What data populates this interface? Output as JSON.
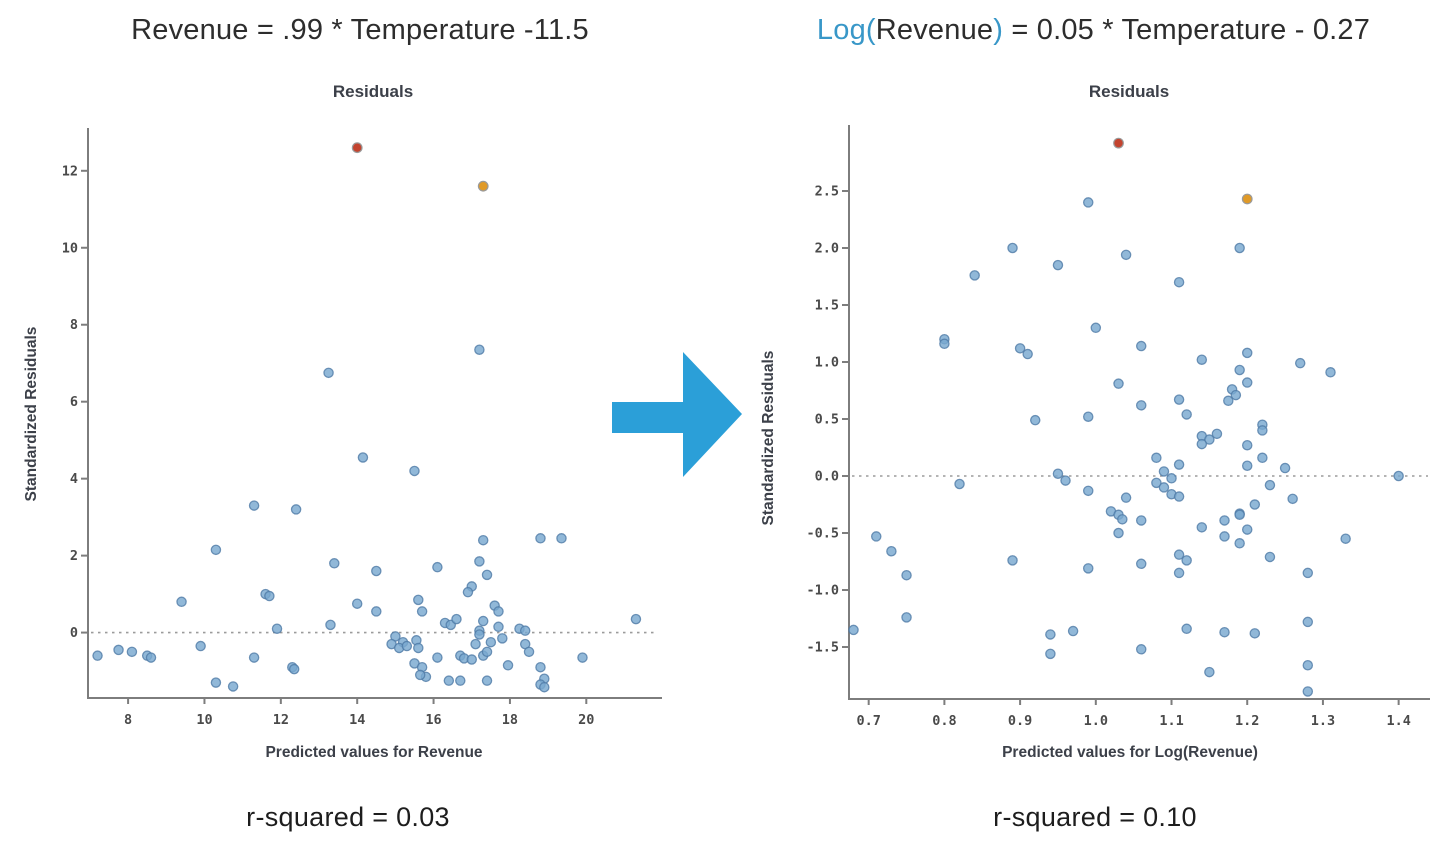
{
  "colors": {
    "background": "#ffffff",
    "dark_text": "#2d2d2d",
    "blue_text": "#3897C8",
    "label_text": "#3c4049",
    "caption_text": "#1d1d1d",
    "tick_text": "#4a4a4a",
    "axis": "#7d7d7d",
    "dotted_line": "#9b9b9b",
    "point_fill": "#79A8D0",
    "point_stroke": "#4F7BA6",
    "outlier_red": "#C3432E",
    "outlier_orange": "#E09A28",
    "outlier_stroke": "#9a9a9a",
    "arrow": "#2B9FD8"
  },
  "arrow": {
    "direction": "right",
    "color": "#2B9FD8"
  },
  "chart_data": [
    {
      "type": "scatter",
      "title_segments": [
        {
          "text": "Revenue = .99 * Temperature -11.5",
          "color_role": "dark"
        }
      ],
      "subtitle": "Residuals",
      "xlabel": "Predicted values for Revenue",
      "ylabel": "Standardized Residuals",
      "caption": "r-squared = 0.03",
      "xlim": [
        6.95,
        21.93
      ],
      "ylim": [
        -1.7,
        13.19
      ],
      "xticks": [
        8,
        10,
        12,
        14,
        16,
        18,
        20
      ],
      "xtick_labels": [
        "8",
        "10",
        "12",
        "14",
        "16",
        "18",
        "20"
      ],
      "yticks": [
        12,
        10,
        8,
        6,
        4,
        2,
        0
      ],
      "ytick_labels": [
        "12",
        "10",
        "8",
        "6",
        "4",
        "2",
        "0"
      ],
      "zero_line": 0,
      "grid": false,
      "points": [
        [
          17.2,
          7.35
        ],
        [
          13.25,
          6.75
        ],
        [
          14.15,
          4.55
        ],
        [
          15.5,
          4.2
        ],
        [
          11.3,
          3.3
        ],
        [
          12.4,
          3.2
        ],
        [
          10.3,
          2.15
        ],
        [
          17.3,
          2.4
        ],
        [
          18.8,
          2.45
        ],
        [
          19.35,
          2.45
        ],
        [
          16.1,
          1.7
        ],
        [
          17.2,
          1.85
        ],
        [
          17.4,
          1.5
        ],
        [
          17.0,
          1.2
        ],
        [
          16.9,
          1.05
        ],
        [
          15.6,
          0.85
        ],
        [
          15.7,
          0.55
        ],
        [
          17.6,
          0.7
        ],
        [
          17.7,
          0.55
        ],
        [
          16.3,
          0.25
        ],
        [
          16.45,
          0.2
        ],
        [
          16.6,
          0.35
        ],
        [
          17.3,
          0.3
        ],
        [
          17.2,
          0.05
        ],
        [
          17.7,
          0.15
        ],
        [
          18.25,
          0.1
        ],
        [
          18.4,
          0.05
        ],
        [
          21.3,
          0.35
        ],
        [
          15.0,
          -0.1
        ],
        [
          15.2,
          -0.25
        ],
        [
          14.9,
          -0.3
        ],
        [
          15.1,
          -0.4
        ],
        [
          15.3,
          -0.35
        ],
        [
          15.55,
          -0.2
        ],
        [
          15.6,
          -0.4
        ],
        [
          17.2,
          -0.05
        ],
        [
          17.1,
          -0.3
        ],
        [
          17.5,
          -0.25
        ],
        [
          17.8,
          -0.15
        ],
        [
          18.4,
          -0.3
        ],
        [
          18.5,
          -0.5
        ],
        [
          16.1,
          -0.65
        ],
        [
          16.7,
          -0.6
        ],
        [
          16.8,
          -0.67
        ],
        [
          17.0,
          -0.7
        ],
        [
          17.3,
          -0.6
        ],
        [
          17.4,
          -0.5
        ],
        [
          17.95,
          -0.85
        ],
        [
          19.9,
          -0.65
        ],
        [
          15.5,
          -0.8
        ],
        [
          15.7,
          -0.9
        ],
        [
          15.8,
          -1.15
        ],
        [
          15.65,
          -1.1
        ],
        [
          16.4,
          -1.25
        ],
        [
          16.7,
          -1.25
        ],
        [
          17.4,
          -1.25
        ],
        [
          18.8,
          -0.9
        ],
        [
          18.9,
          -1.2
        ],
        [
          18.8,
          -1.35
        ],
        [
          18.9,
          -1.42
        ],
        [
          13.4,
          1.8
        ],
        [
          14.5,
          1.6
        ],
        [
          9.4,
          0.8
        ],
        [
          11.6,
          1.0
        ],
        [
          11.7,
          0.95
        ],
        [
          11.9,
          0.1
        ],
        [
          13.3,
          0.2
        ],
        [
          14.0,
          0.75
        ],
        [
          14.5,
          0.55
        ],
        [
          7.2,
          -0.6
        ],
        [
          7.75,
          -0.45
        ],
        [
          8.1,
          -0.5
        ],
        [
          8.5,
          -0.6
        ],
        [
          8.6,
          -0.65
        ],
        [
          9.9,
          -0.35
        ],
        [
          11.3,
          -0.65
        ],
        [
          12.3,
          -0.9
        ],
        [
          12.35,
          -0.95
        ],
        [
          10.3,
          -1.3
        ],
        [
          10.75,
          -1.4
        ]
      ],
      "outliers": [
        {
          "x": 14.0,
          "y": 12.6,
          "color_role": "outlier_red"
        },
        {
          "x": 17.3,
          "y": 11.6,
          "color_role": "outlier_orange"
        }
      ]
    },
    {
      "type": "scatter",
      "title_segments": [
        {
          "text": "Log(",
          "color_role": "blue"
        },
        {
          "text": "Revenue",
          "color_role": "dark"
        },
        {
          "text": ")",
          "color_role": "blue"
        },
        {
          "text": " = 0.05 * Temperature - 0.27",
          "color_role": "dark"
        }
      ],
      "subtitle": "Residuals",
      "xlabel": "Predicted values for Log(Revenue)",
      "ylabel": "Standardized Residuals",
      "caption": "r-squared = 0.10",
      "xlim": [
        0.674,
        1.415
      ],
      "ylim": [
        -1.956,
        3.079
      ],
      "xticks": [
        0.7,
        0.8,
        0.9,
        1.0,
        1.1,
        1.2,
        1.3,
        1.4
      ],
      "xtick_labels": [
        "0.7",
        "0.8",
        "0.9",
        "1.0",
        "1.1",
        "1.2",
        "1.3",
        "1.4"
      ],
      "yticks": [
        2.5,
        2.0,
        1.5,
        1.0,
        0.5,
        0.0,
        -0.5,
        -1.0,
        -1.5
      ],
      "ytick_labels": [
        "2.5",
        "2.0",
        "1.5",
        "1.0",
        "0.5",
        "0.0",
        "-0.5",
        "-1.0",
        "-1.5"
      ],
      "zero_line": 0,
      "grid": false,
      "points": [
        [
          0.99,
          2.4
        ],
        [
          0.89,
          2.0
        ],
        [
          0.95,
          1.85
        ],
        [
          1.04,
          1.94
        ],
        [
          0.84,
          1.76
        ],
        [
          1.11,
          1.7
        ],
        [
          1.19,
          2.0
        ],
        [
          1.0,
          1.3
        ],
        [
          0.8,
          1.2
        ],
        [
          0.8,
          1.16
        ],
        [
          0.9,
          1.12
        ],
        [
          0.91,
          1.07
        ],
        [
          1.06,
          1.14
        ],
        [
          1.14,
          1.02
        ],
        [
          1.2,
          1.08
        ],
        [
          1.27,
          0.99
        ],
        [
          1.31,
          0.91
        ],
        [
          1.19,
          0.93
        ],
        [
          1.2,
          0.82
        ],
        [
          1.03,
          0.81
        ],
        [
          1.18,
          0.76
        ],
        [
          1.185,
          0.71
        ],
        [
          1.175,
          0.66
        ],
        [
          1.06,
          0.62
        ],
        [
          1.11,
          0.67
        ],
        [
          1.12,
          0.54
        ],
        [
          0.92,
          0.49
        ],
        [
          0.99,
          0.52
        ],
        [
          1.22,
          0.45
        ],
        [
          1.22,
          0.4
        ],
        [
          1.14,
          0.35
        ],
        [
          1.15,
          0.32
        ],
        [
          1.16,
          0.37
        ],
        [
          1.14,
          0.28
        ],
        [
          1.2,
          0.27
        ],
        [
          1.08,
          0.16
        ],
        [
          1.11,
          0.1
        ],
        [
          1.22,
          0.16
        ],
        [
          1.2,
          0.09
        ],
        [
          1.25,
          0.07
        ],
        [
          0.95,
          0.02
        ],
        [
          0.96,
          -0.04
        ],
        [
          1.09,
          0.04
        ],
        [
          1.1,
          -0.02
        ],
        [
          1.4,
          0.0
        ],
        [
          0.82,
          -0.07
        ],
        [
          0.99,
          -0.13
        ],
        [
          1.08,
          -0.06
        ],
        [
          1.09,
          -0.1
        ],
        [
          1.1,
          -0.16
        ],
        [
          1.11,
          -0.18
        ],
        [
          1.04,
          -0.19
        ],
        [
          1.23,
          -0.08
        ],
        [
          1.21,
          -0.25
        ],
        [
          1.26,
          -0.2
        ],
        [
          1.19,
          -0.33
        ],
        [
          0.71,
          -0.53
        ],
        [
          0.73,
          -0.66
        ],
        [
          0.75,
          -0.87
        ],
        [
          0.75,
          -1.24
        ],
        [
          0.68,
          -1.35
        ],
        [
          0.89,
          -0.74
        ],
        [
          0.99,
          -0.81
        ],
        [
          1.06,
          -0.77
        ],
        [
          1.11,
          -0.69
        ],
        [
          1.12,
          -0.74
        ],
        [
          1.11,
          -0.85
        ],
        [
          1.23,
          -0.71
        ],
        [
          1.28,
          -0.85
        ],
        [
          1.33,
          -0.55
        ],
        [
          1.02,
          -0.31
        ],
        [
          1.03,
          -0.34
        ],
        [
          1.035,
          -0.38
        ],
        [
          1.03,
          -0.5
        ],
        [
          1.06,
          -0.39
        ],
        [
          1.14,
          -0.45
        ],
        [
          1.17,
          -0.39
        ],
        [
          1.19,
          -0.34
        ],
        [
          1.17,
          -0.53
        ],
        [
          1.19,
          -0.59
        ],
        [
          1.2,
          -0.47
        ],
        [
          1.12,
          -1.34
        ],
        [
          1.17,
          -1.37
        ],
        [
          1.21,
          -1.38
        ],
        [
          0.94,
          -1.39
        ],
        [
          0.97,
          -1.36
        ],
        [
          0.94,
          -1.56
        ],
        [
          1.06,
          -1.52
        ],
        [
          1.15,
          -1.72
        ],
        [
          1.28,
          -1.28
        ],
        [
          1.28,
          -1.66
        ],
        [
          1.28,
          -1.89
        ]
      ],
      "outliers": [
        {
          "x": 1.03,
          "y": 2.92,
          "color_role": "outlier_red"
        },
        {
          "x": 1.2,
          "y": 2.43,
          "color_role": "outlier_orange"
        }
      ]
    }
  ]
}
